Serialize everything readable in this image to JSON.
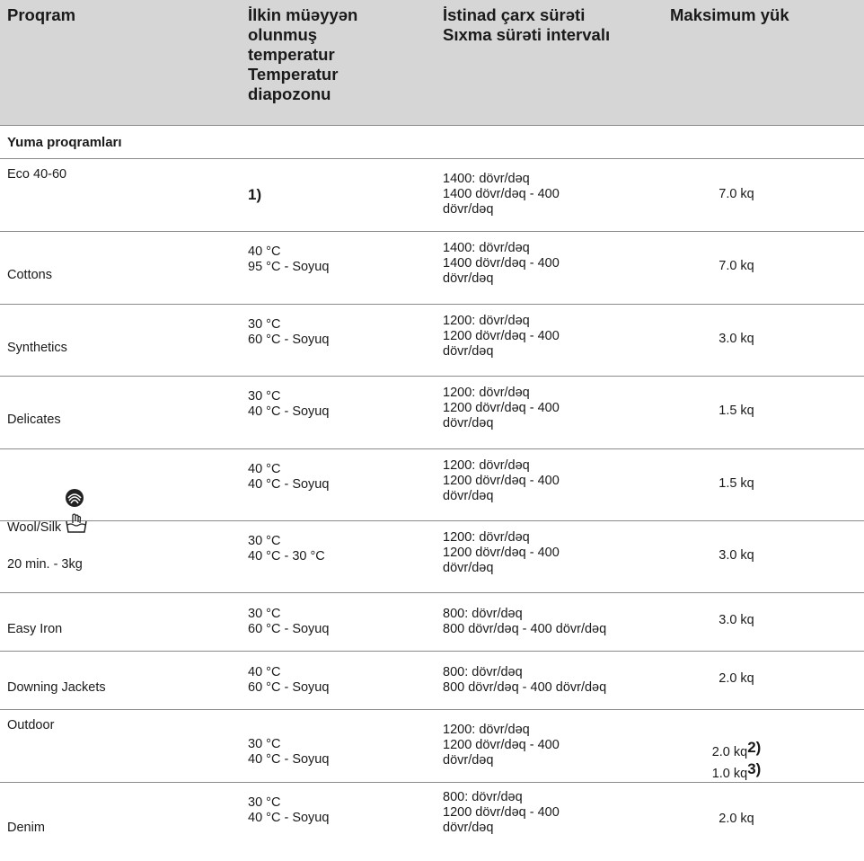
{
  "header": {
    "col_program": "Proqram",
    "col_temperature": "İlkin müəyyən\nolunmuş\ntemperatur\nTemperatur\ndiapozonu",
    "col_spin": "İstinad çarx sürəti\nSıxma sürəti intervalı",
    "col_load": "Maksimum yük"
  },
  "section_title": "Yuma proqramları",
  "rows": [
    {
      "program": "Eco 40-60",
      "temp_note": "1)",
      "spin": "1400: dövr/dəq\n1400 dövr/dəq - 400\ndövr/dəq",
      "load": "7.0 kq"
    },
    {
      "program": "Cottons",
      "temp": "40 °C\n95 °C - Soyuq",
      "spin": "1400: dövr/dəq\n1400 dövr/dəq - 400\ndövr/dəq",
      "load": "7.0 kq"
    },
    {
      "program": "Synthetics",
      "temp": "30 °C\n60 °C - Soyuq",
      "spin": "1200: dövr/dəq\n1200 dövr/dəq - 400\ndövr/dəq",
      "load": "3.0 kq"
    },
    {
      "program": "Delicates",
      "temp": "30 °C\n40 °C - Soyuq",
      "spin": "1200: dövr/dəq\n1200 dövr/dəq - 400\ndövr/dəq",
      "load": "1.5 kq"
    },
    {
      "program": "Wool/Silk",
      "icons": [
        "wool-mark-icon",
        "hand-wash-icon"
      ],
      "temp": "40 °C\n40 °C - Soyuq",
      "spin": "1200: dövr/dəq\n1200 dövr/dəq - 400\ndövr/dəq",
      "load": "1.5 kq"
    },
    {
      "program": "20 min. - 3kg",
      "temp": "30 °C\n40 °C - 30 °C",
      "spin": "1200: dövr/dəq\n1200 dövr/dəq - 400\ndövr/dəq",
      "load": "3.0 kq"
    },
    {
      "program": "Easy Iron",
      "temp": "30 °C\n60 °C - Soyuq",
      "spin": "800: dövr/dəq\n800 dövr/dəq - 400 dövr/dəq",
      "load": "3.0 kq"
    },
    {
      "program": "Downing Jackets",
      "temp": "40 °C\n60 °C - Soyuq",
      "spin": "800: dövr/dəq\n800 dövr/dəq - 400 dövr/dəq",
      "load": "2.0 kq"
    },
    {
      "program": "Outdoor",
      "temp": "30 °C\n40 °C - Soyuq",
      "spin": "1200: dövr/dəq\n1200 dövr/dəq - 400\ndövr/dəq",
      "load_a": "2.0 kq",
      "load_a_note": "2)",
      "load_b": "1.0 kq",
      "load_b_note": "3)"
    },
    {
      "program": "Denim",
      "temp": "30 °C\n40 °C - Soyuq",
      "spin": "800: dövr/dəq\n1200 dövr/dəq - 400\ndövr/dəq",
      "load": "2.0 kq"
    }
  ]
}
